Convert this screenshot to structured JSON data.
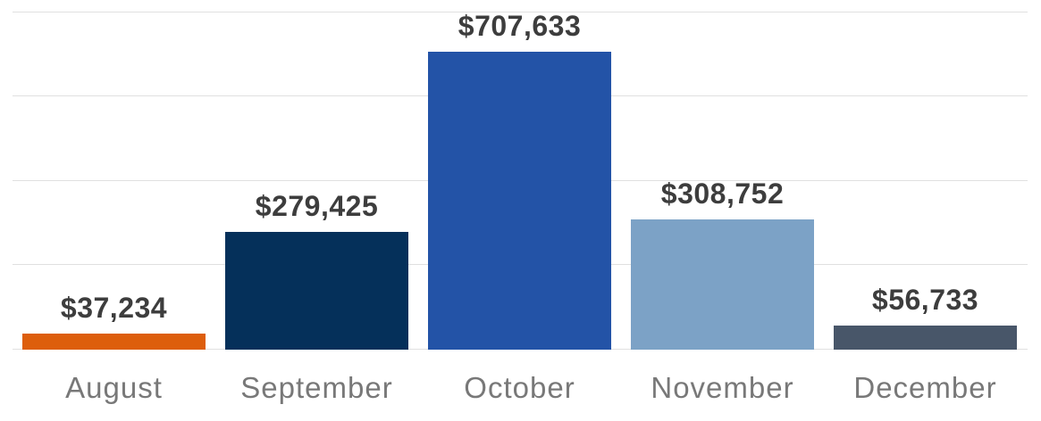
{
  "chart_data": {
    "type": "bar",
    "title": "",
    "categories": [
      "August",
      "September",
      "October",
      "November",
      "December"
    ],
    "values": [
      37234,
      279425,
      707633,
      308752,
      56733
    ],
    "value_labels": [
      "$37,234",
      "$279,425",
      "$707,633",
      "$308,752",
      "$56,733"
    ],
    "bar_colors": [
      "#dd5e0c",
      "#05305a",
      "#2353a7",
      "#7ca2c6",
      "#485669"
    ],
    "xlabel": "",
    "ylabel": "",
    "ylim": [
      0,
      800000
    ],
    "gridline_step": 200000,
    "grid": true,
    "legend": false,
    "styles": {
      "background": "#ffffff",
      "grid_color": "#e0e0e0",
      "value_label_color": "#3d3d3d",
      "category_label_color": "#787878"
    }
  }
}
